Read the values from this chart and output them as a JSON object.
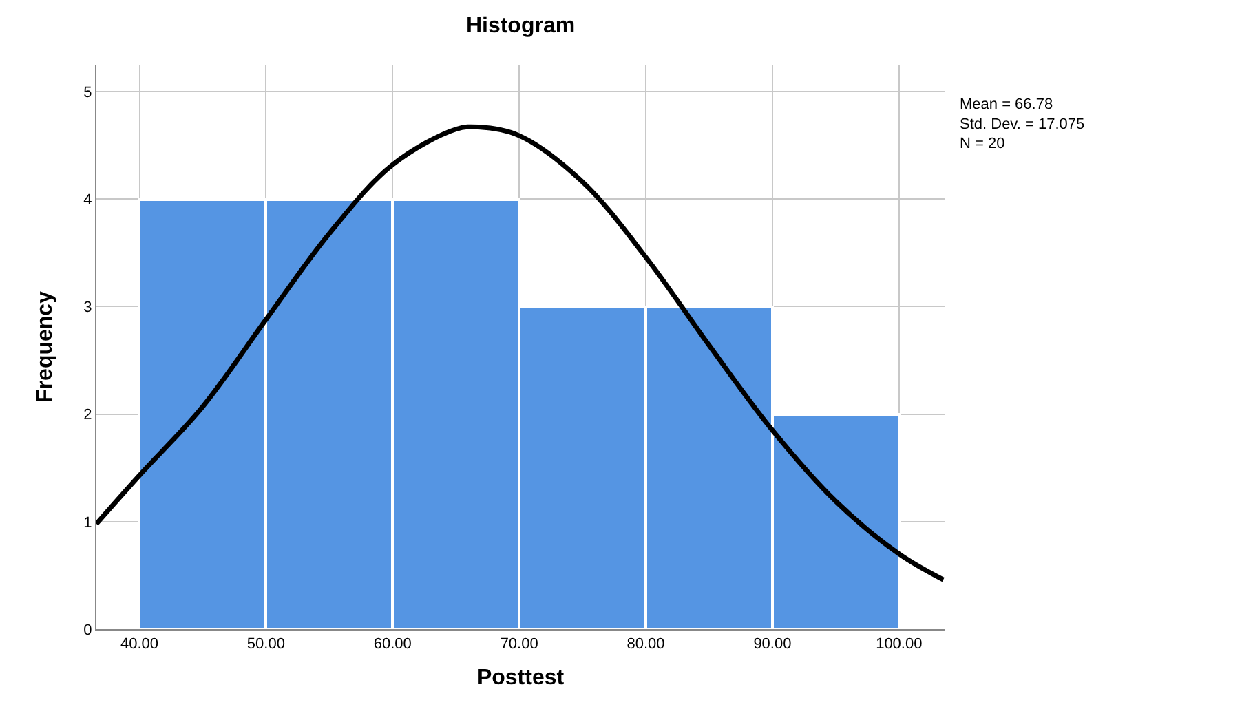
{
  "chart_data": {
    "type": "histogram",
    "title": "Histogram",
    "xlabel": "Posttest",
    "ylabel": "Frequency",
    "bins": [
      40,
      50,
      60,
      70,
      80,
      90,
      100
    ],
    "values": [
      4,
      4,
      4,
      3,
      3,
      2
    ],
    "color": "#5595e3",
    "series": [
      {
        "type": "line",
        "color": "#000000",
        "x": [
          36.6,
          40,
          45,
          50,
          55,
          60,
          65,
          66.78,
          70,
          75,
          80,
          85,
          90,
          95,
          100,
          103.5
        ],
        "values": [
          0.98,
          1.43,
          2.07,
          2.88,
          3.68,
          4.32,
          4.65,
          4.67,
          4.59,
          4.16,
          3.46,
          2.64,
          1.85,
          1.19,
          0.7,
          0.46
        ]
      }
    ],
    "xlim": [
      36.6,
      103.6
    ],
    "xticks": [
      {
        "value": 40,
        "label": "40.00"
      },
      {
        "value": 50,
        "label": "50.00"
      },
      {
        "value": 60,
        "label": "60.00"
      },
      {
        "value": 70,
        "label": "70.00"
      },
      {
        "value": 80,
        "label": "80.00"
      },
      {
        "value": 90,
        "label": "90.00"
      },
      {
        "value": 100,
        "label": "100.00"
      }
    ],
    "ylim": [
      0,
      5.25
    ],
    "yticks": [
      0,
      1,
      2,
      3,
      4,
      5
    ],
    "grid": true,
    "annotations": [
      "Mean = 66.78",
      "Std. Dev. = 17.075",
      "N = 20"
    ]
  }
}
